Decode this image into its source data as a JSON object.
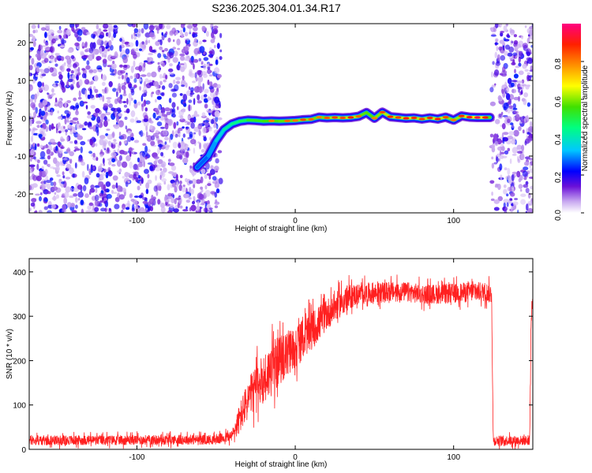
{
  "title": "S236.2025.304.01.34.R17",
  "chart_data": [
    {
      "type": "heatmap",
      "title": "",
      "xlabel": "Height of straight line (km)",
      "ylabel": "Frequency (Hz)",
      "xlim": [
        -168,
        150
      ],
      "ylim": [
        -25,
        25
      ],
      "x_ticks": [
        -100,
        0,
        100
      ],
      "y_ticks": [
        -20,
        -10,
        0,
        10,
        20
      ],
      "colorbar": {
        "label": "Normalized spectral amplitude",
        "range": [
          0,
          1
        ],
        "ticks": [
          0.0,
          0.2,
          0.4,
          0.6,
          0.8
        ],
        "tick_labels": [
          "0.0",
          "0.2",
          "0.4",
          "0.6",
          "0.8"
        ],
        "colormap": [
          "#ffffff",
          "#c8a8f0",
          "#6a10d8",
          "#0000ff",
          "#00c8ff",
          "#00ff80",
          "#40e000",
          "#ffff00",
          "#ff9000",
          "#ff2000",
          "#ff0080"
        ]
      },
      "noise_regions_x": [
        [
          -168,
          -47
        ],
        [
          124,
          150
        ]
      ],
      "signal_trace": {
        "x": [
          -62,
          -55,
          -50,
          -45,
          -40,
          -35,
          -30,
          -25,
          -20,
          -15,
          -10,
          -5,
          0,
          5,
          10,
          15,
          20,
          25,
          30,
          35,
          40,
          45,
          50,
          55,
          60,
          65,
          70,
          75,
          80,
          85,
          90,
          95,
          100,
          105,
          110,
          115,
          120,
          123
        ],
        "frequency": [
          -13,
          -10,
          -6,
          -3,
          -1.5,
          -0.8,
          -0.5,
          -0.6,
          -0.8,
          -0.7,
          -0.8,
          -0.7,
          -0.6,
          -0.4,
          -0.3,
          0.3,
          0.1,
          0.2,
          0.1,
          0.2,
          0.5,
          1.5,
          0,
          1.6,
          0.4,
          0.2,
          0,
          0.1,
          -0.2,
          0.1,
          -0.2,
          0.3,
          -0.5,
          0.6,
          0.3,
          0.2,
          0.2,
          0.2
        ],
        "amplitude": [
          0.35,
          0.4,
          0.45,
          0.55,
          0.6,
          0.62,
          0.7,
          0.75,
          0.72,
          0.8,
          0.78,
          0.82,
          0.8,
          0.85,
          0.82,
          0.8,
          0.84,
          0.86,
          0.85,
          0.9,
          0.82,
          0.78,
          0.8,
          0.85,
          0.88,
          0.86,
          0.9,
          0.88,
          0.86,
          0.88,
          0.9,
          0.85,
          0.8,
          0.88,
          0.92,
          0.95,
          0.9,
          0.7
        ]
      }
    },
    {
      "type": "line",
      "title": "",
      "xlabel": "Height of straight line (km)",
      "ylabel": "SNR (10 * v/v)",
      "xlim": [
        -168,
        150
      ],
      "ylim": [
        0,
        430
      ],
      "x_ticks": [
        -100,
        0,
        100
      ],
      "y_ticks": [
        0,
        100,
        200,
        300,
        400
      ],
      "color": "#ff2020",
      "envelope": {
        "x": [
          -168,
          -50,
          -40,
          -35,
          -30,
          -25,
          -20,
          -15,
          -10,
          -5,
          0,
          5,
          10,
          15,
          20,
          25,
          30,
          35,
          40,
          50,
          60,
          70,
          80,
          90,
          100,
          110,
          120,
          124,
          125,
          148,
          149,
          150
        ],
        "mean": [
          20,
          22,
          30,
          70,
          110,
          140,
          160,
          180,
          200,
          215,
          230,
          250,
          265,
          285,
          305,
          320,
          335,
          345,
          350,
          352,
          355,
          355,
          350,
          350,
          352,
          355,
          355,
          350,
          20,
          20,
          300,
          330
        ],
        "spread": [
          14,
          14,
          16,
          45,
          55,
          65,
          70,
          75,
          70,
          65,
          60,
          55,
          55,
          50,
          45,
          40,
          40,
          35,
          30,
          30,
          28,
          28,
          28,
          28,
          28,
          28,
          28,
          28,
          14,
          14,
          40,
          40
        ]
      }
    }
  ]
}
